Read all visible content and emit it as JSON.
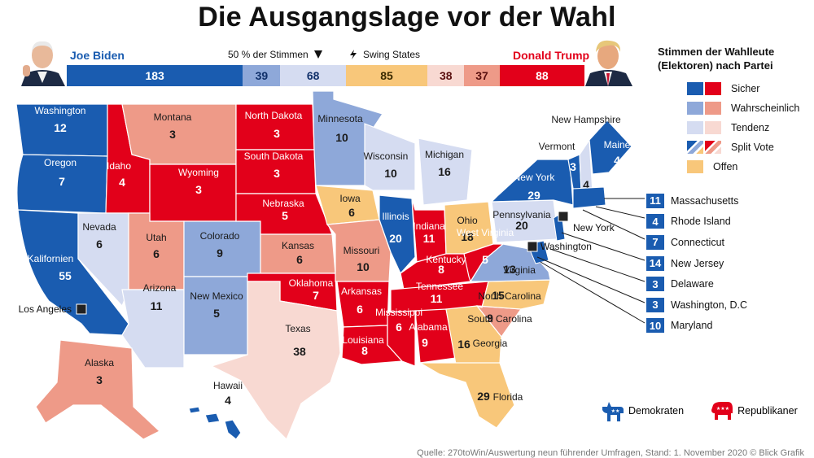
{
  "title": "Die Ausgangslage vor der Wahl",
  "header": {
    "biden_name": "Joe Biden",
    "trump_name": "Donald Trump",
    "half_label": "50 % der Stimmen",
    "swing_label": "Swing States"
  },
  "bar_segments": [
    {
      "key": "dem_safe",
      "value": 183,
      "color": "#1a5cb0",
      "text_color": "#ffffff"
    },
    {
      "key": "dem_likely",
      "value": 39,
      "color": "#8ea8d9",
      "text_color": "#10306a"
    },
    {
      "key": "dem_lean",
      "value": 68,
      "color": "#d5dcf1",
      "text_color": "#10306a"
    },
    {
      "key": "tossup",
      "value": 85,
      "color": "#f8c77a",
      "text_color": "#3a2a00"
    },
    {
      "key": "rep_lean",
      "value": 38,
      "color": "#f8d9d2",
      "text_color": "#5a1010"
    },
    {
      "key": "rep_likely",
      "value": 37,
      "color": "#ee9a88",
      "text_color": "#5a1010"
    },
    {
      "key": "rep_safe",
      "value": 88,
      "color": "#e2001a",
      "text_color": "#ffffff"
    }
  ],
  "legend": {
    "title_line1": "Stimmen der Wahlleute",
    "title_line2": "(Elektoren) nach Partei",
    "items": [
      {
        "label": "Sicher",
        "c1": "#1a5cb0",
        "c2": "#e2001a"
      },
      {
        "label": "Wahrscheinlich",
        "c1": "#8ea8d9",
        "c2": "#ee9a88"
      },
      {
        "label": "Tendenz",
        "c1": "#d5dcf1",
        "c2": "#f8d9d2"
      },
      {
        "label": "Split Vote",
        "c1": "split-blue",
        "c2": "split-red"
      },
      {
        "label": "Offen",
        "c1": "#f8c77a",
        "c2": ""
      }
    ]
  },
  "small_states": [
    {
      "votes": "11",
      "name": "Massachusetts"
    },
    {
      "votes": "4",
      "name": "Rhode Island"
    },
    {
      "votes": "7",
      "name": "Connecticut"
    },
    {
      "votes": "14",
      "name": "New Jersey"
    },
    {
      "votes": "3",
      "name": "Delaware"
    },
    {
      "votes": "3",
      "name": "Washington, D.C"
    },
    {
      "votes": "10",
      "name": "Maryland"
    }
  ],
  "states": [
    {
      "id": "wa",
      "name": "Washington",
      "votes": "12",
      "cat": "dem_safe"
    },
    {
      "id": "or",
      "name": "Oregon",
      "votes": "7",
      "cat": "dem_safe"
    },
    {
      "id": "ca",
      "name": "Kalifornien",
      "votes": "55",
      "cat": "dem_safe"
    },
    {
      "id": "id",
      "name": "Idaho",
      "votes": "4",
      "cat": "rep_safe"
    },
    {
      "id": "nv",
      "name": "Nevada",
      "votes": "6",
      "cat": "dem_lean"
    },
    {
      "id": "mt",
      "name": "Montana",
      "votes": "3",
      "cat": "rep_likely"
    },
    {
      "id": "wy",
      "name": "Wyoming",
      "votes": "3",
      "cat": "rep_safe"
    },
    {
      "id": "ut",
      "name": "Utah",
      "votes": "6",
      "cat": "rep_likely"
    },
    {
      "id": "az",
      "name": "Arizona",
      "votes": "11",
      "cat": "dem_lean"
    },
    {
      "id": "co",
      "name": "Colorado",
      "votes": "9",
      "cat": "dem_likely"
    },
    {
      "id": "nm",
      "name": "New Mexico",
      "votes": "5",
      "cat": "dem_likely"
    },
    {
      "id": "nd",
      "name": "North Dakota",
      "votes": "3",
      "cat": "rep_safe"
    },
    {
      "id": "sd",
      "name": "South Dakota",
      "votes": "3",
      "cat": "rep_safe"
    },
    {
      "id": "ne",
      "name": "Nebraska",
      "votes": "5",
      "cat": "rep_safe"
    },
    {
      "id": "ks",
      "name": "Kansas",
      "votes": "6",
      "cat": "rep_likely"
    },
    {
      "id": "ok",
      "name": "Oklahoma",
      "votes": "7",
      "cat": "rep_safe"
    },
    {
      "id": "tx",
      "name": "Texas",
      "votes": "38",
      "cat": "rep_lean"
    },
    {
      "id": "mn",
      "name": "Minnesota",
      "votes": "10",
      "cat": "dem_likely"
    },
    {
      "id": "ia",
      "name": "Iowa",
      "votes": "6",
      "cat": "tossup"
    },
    {
      "id": "mo",
      "name": "Missouri",
      "votes": "10",
      "cat": "rep_likely"
    },
    {
      "id": "ar",
      "name": "Arkansas",
      "votes": "6",
      "cat": "rep_safe"
    },
    {
      "id": "la",
      "name": "Louisiana",
      "votes": "8",
      "cat": "rep_safe"
    },
    {
      "id": "wi",
      "name": "Wisconsin",
      "votes": "10",
      "cat": "dem_lean"
    },
    {
      "id": "il",
      "name": "Illinois",
      "votes": "20",
      "cat": "dem_safe"
    },
    {
      "id": "mi",
      "name": "Michigan",
      "votes": "16",
      "cat": "dem_lean"
    },
    {
      "id": "in",
      "name": "Indiana",
      "votes": "11",
      "cat": "rep_safe"
    },
    {
      "id": "oh",
      "name": "Ohio",
      "votes": "18",
      "cat": "tossup"
    },
    {
      "id": "ky",
      "name": "Kentucky",
      "votes": "8",
      "cat": "rep_safe"
    },
    {
      "id": "tn",
      "name": "Tennessee",
      "votes": "11",
      "cat": "rep_safe"
    },
    {
      "id": "ms",
      "name": "Mississippi",
      "votes": "6",
      "cat": "rep_safe"
    },
    {
      "id": "al",
      "name": "Alabama",
      "votes": "9",
      "cat": "rep_safe"
    },
    {
      "id": "ga",
      "name": "Georgia",
      "votes": "16",
      "cat": "tossup"
    },
    {
      "id": "fl",
      "name": "Florida",
      "votes": "29",
      "cat": "tossup"
    },
    {
      "id": "sc",
      "name": "South Carolina",
      "votes": "9",
      "cat": "rep_likely"
    },
    {
      "id": "nc",
      "name": "North Carolina",
      "votes": "15",
      "cat": "tossup"
    },
    {
      "id": "va",
      "name": "Virginia",
      "votes": "13",
      "cat": "dem_likely"
    },
    {
      "id": "wv",
      "name": "West Virginia",
      "votes": "5",
      "cat": "rep_safe"
    },
    {
      "id": "pa",
      "name": "Pennsylvania",
      "votes": "20",
      "cat": "dem_lean"
    },
    {
      "id": "ny",
      "name": "New York",
      "votes": "29",
      "cat": "dem_safe"
    },
    {
      "id": "vt",
      "name": "Vermont",
      "votes": "3",
      "cat": "dem_safe"
    },
    {
      "id": "nh",
      "name": "New Hampshire",
      "votes": "4",
      "cat": "dem_lean"
    },
    {
      "id": "me",
      "name": "Maine",
      "votes": "4",
      "cat": "dem_safe"
    },
    {
      "id": "ak",
      "name": "Alaska",
      "votes": "3",
      "cat": "rep_likely"
    },
    {
      "id": "hi",
      "name": "Hawaii",
      "votes": "4",
      "cat": "dem_safe"
    }
  ],
  "cities": {
    "los_angeles": "Los Angeles",
    "new_york": "New York",
    "washington": "Washington"
  },
  "party_legend": {
    "dem": "Demokraten",
    "rep": "Republikaner"
  },
  "source": "Quelle: 270toWin/Auswertung neun führender Umfragen, Stand: 1. November 2020 © Blick Grafik"
}
